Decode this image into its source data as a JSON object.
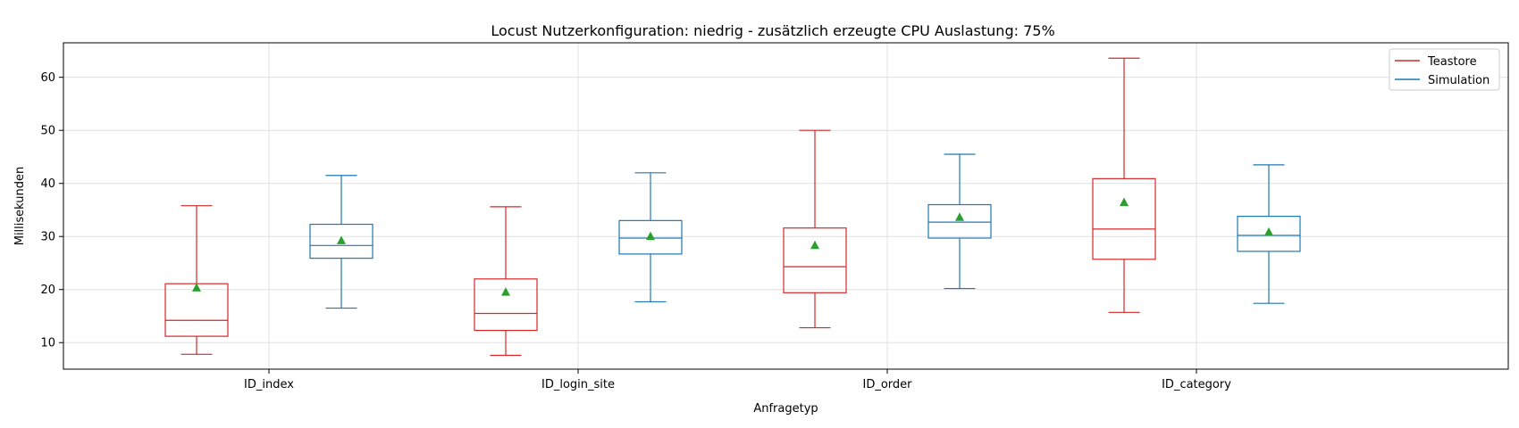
{
  "chart_data": {
    "type": "box",
    "title": "Locust Nutzerkonfiguration: niedrig - zusätzlich erzeugte CPU Auslastung: 75%",
    "xlabel": "Anfragetyp",
    "ylabel": "Millisekunden",
    "ylim": [
      5,
      66.5
    ],
    "yticks": [
      10,
      20,
      30,
      40,
      50,
      60
    ],
    "grid": true,
    "legend_position": "top-right",
    "categories": [
      "ID_index",
      "ID_login_site",
      "ID_order",
      "ID_category"
    ],
    "series": [
      {
        "name": "Teastore",
        "color": "#d62728",
        "boxes": [
          {
            "whisker_low": 7.8,
            "q1": 11.2,
            "median": 14.2,
            "q3": 21.1,
            "whisker_high": 35.8,
            "mean": 20.4
          },
          {
            "whisker_low": 7.6,
            "q1": 12.3,
            "median": 15.5,
            "q3": 22.0,
            "whisker_high": 35.6,
            "mean": 19.6
          },
          {
            "whisker_low": 12.8,
            "q1": 19.4,
            "median": 24.3,
            "q3": 31.6,
            "whisker_high": 50.0,
            "mean": 28.4
          },
          {
            "whisker_low": 15.7,
            "q1": 25.7,
            "median": 31.4,
            "q3": 40.9,
            "whisker_high": 63.6,
            "mean": 36.5
          }
        ]
      },
      {
        "name": "Simulation",
        "color": "#1f77b4",
        "boxes": [
          {
            "whisker_low": 16.5,
            "q1": 25.9,
            "median": 28.3,
            "q3": 32.3,
            "whisker_high": 41.5,
            "mean": 29.3
          },
          {
            "whisker_low": 17.7,
            "q1": 26.7,
            "median": 29.7,
            "q3": 33.0,
            "whisker_high": 42.0,
            "mean": 30.1
          },
          {
            "whisker_low": 20.2,
            "q1": 29.7,
            "median": 32.7,
            "q3": 36.0,
            "whisker_high": 45.5,
            "mean": 33.7
          },
          {
            "whisker_low": 17.4,
            "q1": 27.2,
            "median": 30.2,
            "q3": 33.8,
            "whisker_high": 43.5,
            "mean": 30.9
          }
        ]
      }
    ],
    "mean_marker_color": "#2ca02c"
  }
}
